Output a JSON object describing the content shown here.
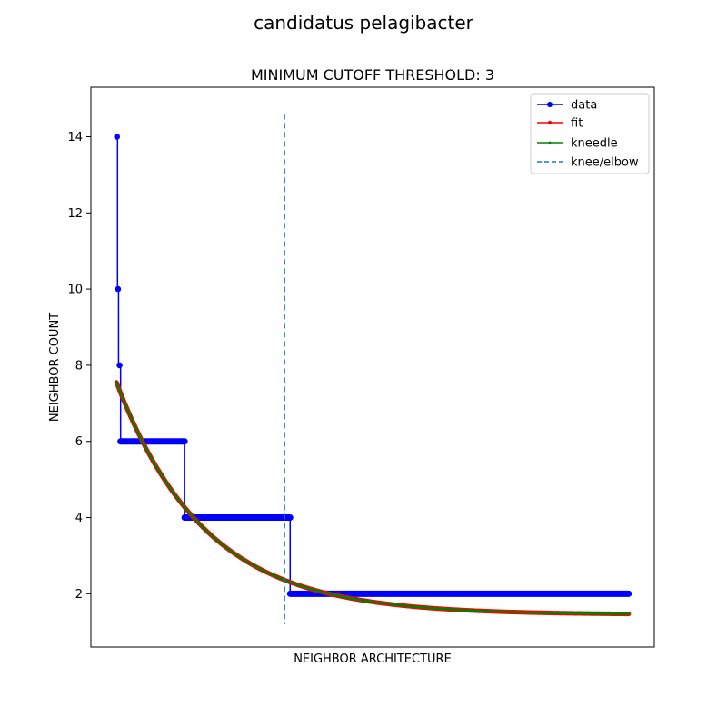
{
  "figure": {
    "suptitle": "candidatus pelagibacter"
  },
  "chart_data": {
    "type": "line",
    "title": "MINIMUM CUTOFF THRESHOLD: 3",
    "xlabel": "NEIGHBOR ARCHITECTURE",
    "ylabel": "NEIGHBOR COUNT",
    "xlim": [
      -0.05,
      1.05
    ],
    "ylim": [
      0.6,
      15.3
    ],
    "yticks": [
      2,
      4,
      6,
      8,
      10,
      12,
      14
    ],
    "show_x_ticks": false,
    "grid": false,
    "legend": {
      "placement": "top-right",
      "entries": [
        "data",
        "fit",
        "kneedle",
        "knee/elbow"
      ]
    },
    "colors": {
      "data": "#0000ff",
      "fit": "#ff0000",
      "kneedle": "#008000",
      "knee": "#1f77b4"
    },
    "series": [
      {
        "name": "data",
        "style": "line-with-dots",
        "steps": [
          {
            "x0": 0.0,
            "x1": 0.002,
            "y": 14
          },
          {
            "x0": 0.002,
            "x1": 0.004,
            "y": 10
          },
          {
            "x0": 0.004,
            "x1": 0.008,
            "y": 8
          },
          {
            "x0": 0.008,
            "x1": 0.133,
            "y": 6
          },
          {
            "x0": 0.133,
            "x1": 0.339,
            "y": 4
          },
          {
            "x0": 0.339,
            "x1": 1.0,
            "y": 2
          }
        ]
      },
      {
        "name": "fit",
        "style": "line-with-dots",
        "curve": {
          "a": 6.1,
          "k": 5.8,
          "c": 1.45
        }
      },
      {
        "name": "kneedle",
        "style": "line-with-small-dots",
        "curve": {
          "a": 6.1,
          "k": 5.8,
          "c": 1.45
        }
      }
    ],
    "knee": {
      "name": "knee/elbow",
      "x": 0.328,
      "y_range": [
        1.2,
        14.6
      ],
      "style": "dashed"
    }
  }
}
